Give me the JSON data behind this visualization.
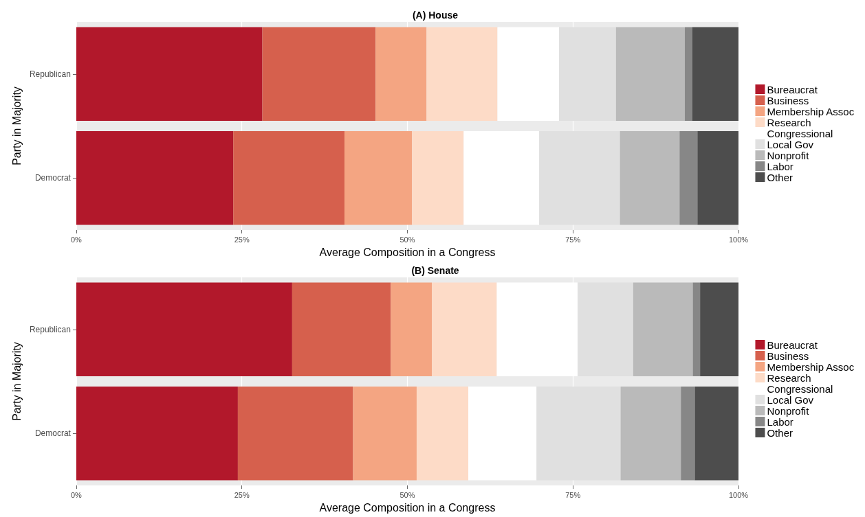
{
  "chart_data": [
    {
      "type": "bar",
      "orientation": "horizontal",
      "stacked": true,
      "title": "(A) House",
      "xlabel": "Average Composition in a Congress",
      "ylabel": "Party in Majority",
      "categories": [
        "Republican",
        "Democrat"
      ],
      "xlim": [
        0,
        100
      ],
      "xticks": [
        {
          "value": 0,
          "label": "0%"
        },
        {
          "value": 25,
          "label": "25%"
        },
        {
          "value": 50,
          "label": "50%"
        },
        {
          "value": 75,
          "label": "75%"
        },
        {
          "value": 100,
          "label": "100%"
        }
      ],
      "grid": "x",
      "legend": "right",
      "series": [
        {
          "name": "Bureaucrat",
          "color": "#b2182b",
          "values": [
            28.1,
            23.7
          ]
        },
        {
          "name": "Business",
          "color": "#d6604d",
          "values": [
            17.1,
            16.8
          ]
        },
        {
          "name": "Membership Assoc",
          "color": "#f4a582",
          "values": [
            7.7,
            10.2
          ]
        },
        {
          "name": "Research",
          "color": "#fddbc7",
          "values": [
            10.7,
            7.8
          ]
        },
        {
          "name": "Congressional",
          "color": "#ffffff",
          "values": [
            9.3,
            11.4
          ]
        },
        {
          "name": "Local Gov",
          "color": "#e0e0e0",
          "values": [
            8.6,
            12.2
          ]
        },
        {
          "name": "Nonprofit",
          "color": "#bababa",
          "values": [
            10.4,
            9.0
          ]
        },
        {
          "name": "Labor",
          "color": "#878787",
          "values": [
            1.1,
            2.7
          ]
        },
        {
          "name": "Other",
          "color": "#4d4d4d",
          "values": [
            7.0,
            6.2
          ]
        }
      ]
    },
    {
      "type": "bar",
      "orientation": "horizontal",
      "stacked": true,
      "title": "(B) Senate",
      "xlabel": "Average Composition in a Congress",
      "ylabel": "Party in Majority",
      "categories": [
        "Republican",
        "Democrat"
      ],
      "xlim": [
        0,
        100
      ],
      "xticks": [
        {
          "value": 0,
          "label": "0%"
        },
        {
          "value": 25,
          "label": "25%"
        },
        {
          "value": 50,
          "label": "50%"
        },
        {
          "value": 75,
          "label": "75%"
        },
        {
          "value": 100,
          "label": "100%"
        }
      ],
      "grid": "x",
      "legend": "right",
      "series": [
        {
          "name": "Bureaucrat",
          "color": "#b2182b",
          "values": [
            32.6,
            24.4
          ]
        },
        {
          "name": "Business",
          "color": "#d6604d",
          "values": [
            14.9,
            17.4
          ]
        },
        {
          "name": "Membership Assoc",
          "color": "#f4a582",
          "values": [
            6.2,
            9.6
          ]
        },
        {
          "name": "Research",
          "color": "#fddbc7",
          "values": [
            9.8,
            7.8
          ]
        },
        {
          "name": "Congressional",
          "color": "#ffffff",
          "values": [
            12.2,
            10.3
          ]
        },
        {
          "name": "Local Gov",
          "color": "#e0e0e0",
          "values": [
            8.4,
            12.7
          ]
        },
        {
          "name": "Nonprofit",
          "color": "#bababa",
          "values": [
            9.0,
            9.1
          ]
        },
        {
          "name": "Labor",
          "color": "#878787",
          "values": [
            1.1,
            2.1
          ]
        },
        {
          "name": "Other",
          "color": "#4d4d4d",
          "values": [
            5.8,
            6.6
          ]
        }
      ]
    }
  ]
}
